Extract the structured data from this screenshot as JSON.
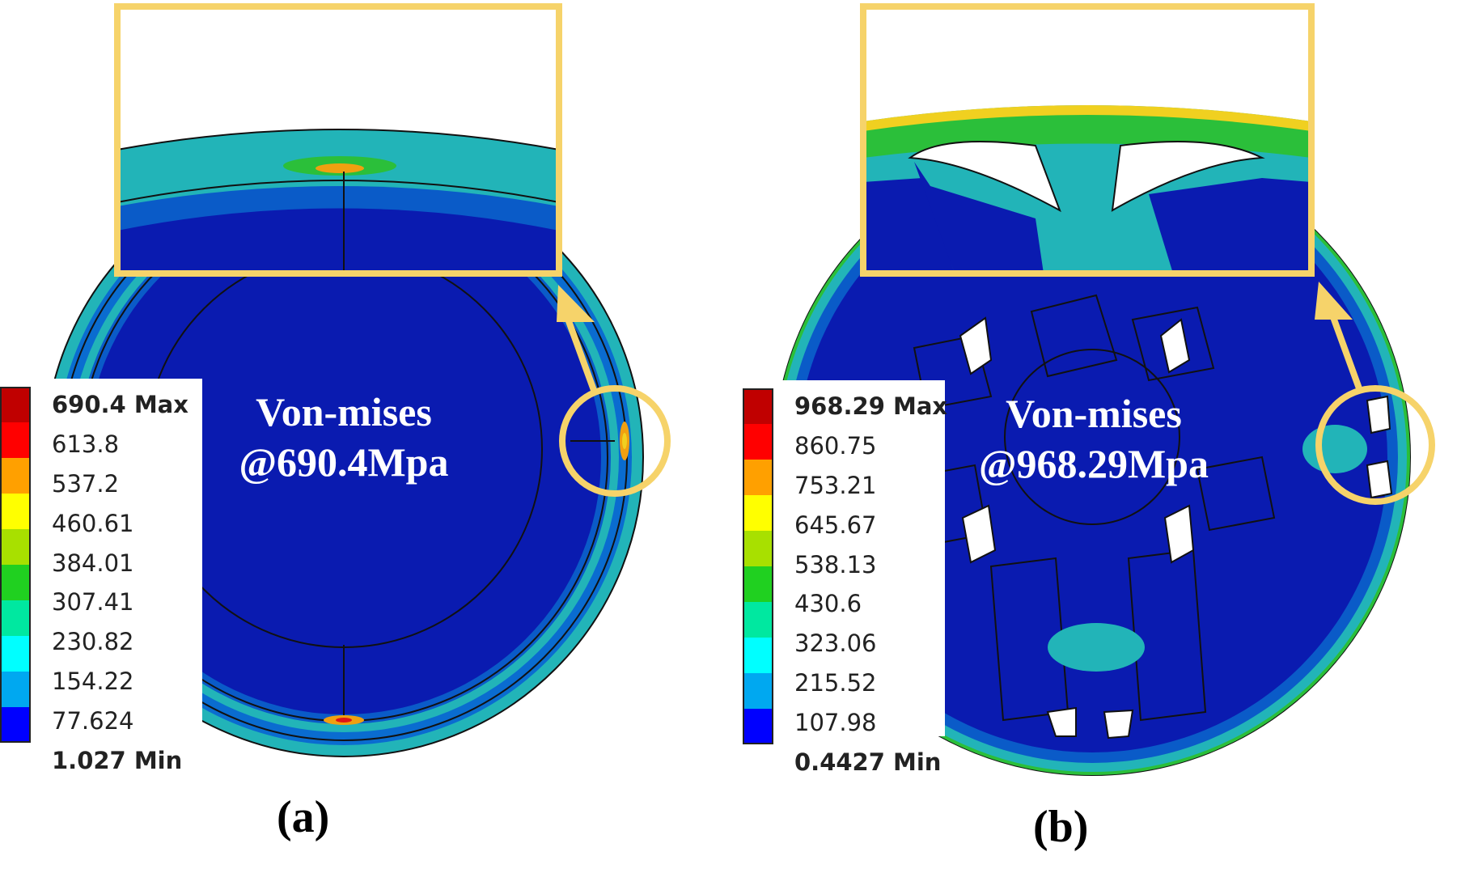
{
  "colors": {
    "contour_min": "#0a1bb0",
    "contour_low": "#0a5bc8",
    "contour_mid": "#22b4b8",
    "contour_green": "#2bbf3a",
    "contour_yellow": "#f0d020",
    "contour_orange": "#f0a010",
    "contour_max": "#e01515",
    "highlight": "#f6d36a"
  },
  "legend_colors": [
    "#c00000",
    "#ff0000",
    "#ffa000",
    "#ffff00",
    "#a8e000",
    "#20d020",
    "#00e8a0",
    "#00ffff",
    "#00a8f0",
    "#0000ff"
  ],
  "panels": [
    {
      "id": "a",
      "label": "(a)",
      "title_line1": "Von-mises",
      "title_line2": "@690.4Mpa",
      "legend": [
        "690.4 Max",
        "613.8",
        "537.2",
        "460.61",
        "384.01",
        "307.41",
        "230.82",
        "154.22",
        "77.624",
        "1.027 Min"
      ]
    },
    {
      "id": "b",
      "label": "(b)",
      "title_line1": "Von-mises",
      "title_line2": "@968.29Mpa",
      "legend": [
        "968.29 Max",
        "860.75",
        "753.21",
        "645.67",
        "538.13",
        "430.6",
        "323.06",
        "215.52",
        "107.98",
        "0.4427 Min"
      ]
    }
  ]
}
